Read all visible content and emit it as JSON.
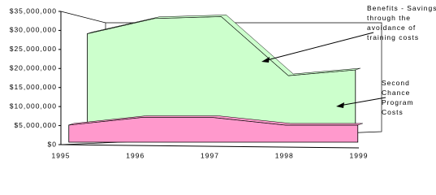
{
  "chart_data": {
    "type": "area",
    "categories": [
      "1995",
      "1996",
      "1997",
      "1998",
      "1999"
    ],
    "series": [
      {
        "name": "Benefits - Savings through the avoidance of training costs",
        "color": "#ccffcc",
        "values": [
          27000000,
          31000000,
          31500000,
          16000000,
          17500000
        ]
      },
      {
        "name": "Second Chance Program Costs",
        "color": "#ff99cc",
        "values": [
          4500000,
          6500000,
          6500000,
          4500000,
          4500000
        ]
      }
    ],
    "ylim": [
      0,
      35000000
    ],
    "yticks": [
      {
        "value": 0,
        "label": "$0"
      },
      {
        "value": 5000000,
        "label": "$5,000,000"
      },
      {
        "value": 10000000,
        "label": "$10,000,000"
      },
      {
        "value": 15000000,
        "label": "$15,000,000"
      },
      {
        "value": 20000000,
        "label": "$20,000,000"
      },
      {
        "value": 25000000,
        "label": "$25,000,000"
      },
      {
        "value": 30000000,
        "label": "$30,000,000"
      },
      {
        "value": 35000000,
        "label": "$35,000,000"
      }
    ]
  }
}
